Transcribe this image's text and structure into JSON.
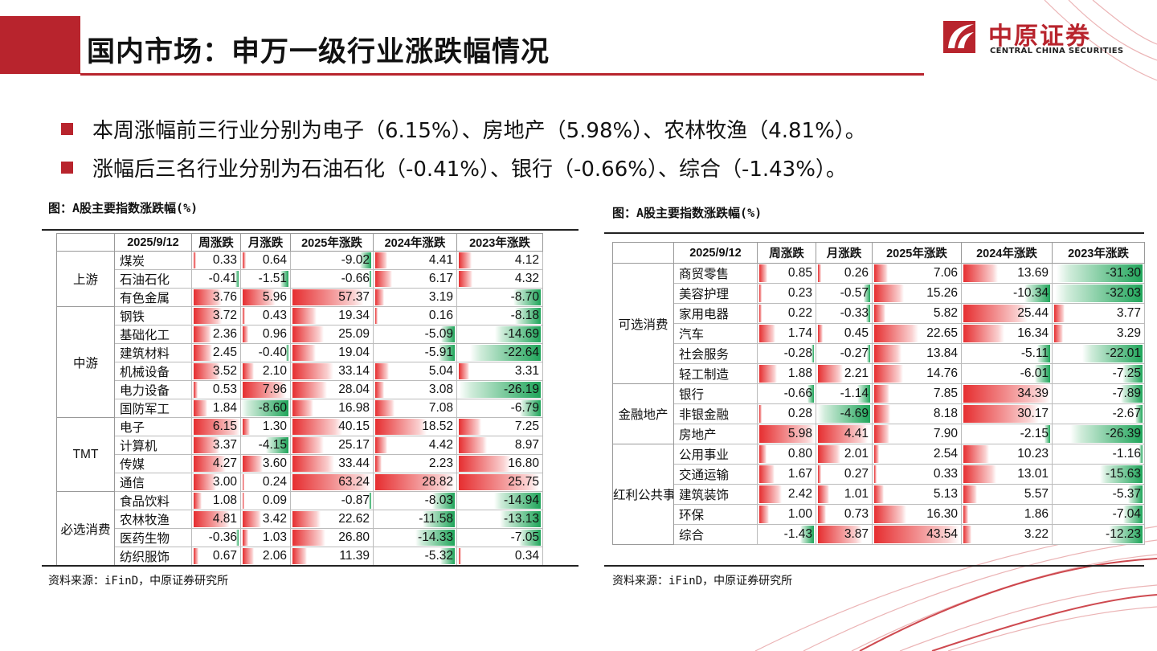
{
  "title": "国内市场：申万一级行业涨跌幅情况",
  "logo": {
    "cn": "中原证券",
    "en": "CENTRAL CHINA SECURITIES"
  },
  "bullets": [
    "本周涨幅前三行业分别为电子（6.15%）、房地产（5.98%）、农林牧渔（4.81%）。",
    "涨幅后三名行业分别为石油石化（-0.41%）、银行（-0.66%）、综合（-1.43%）。"
  ],
  "colors": {
    "brand": "#b8242d",
    "up": "#e62e30",
    "down": "#1fa55a"
  },
  "left_panel": {
    "caption": "图：A股主要指数涨跌幅(%)",
    "source": "资料来源：iFinD，中原证券研究所",
    "headers": [
      "2025/9/12",
      "周涨跌",
      "月涨跌",
      "2025年涨跌",
      "2024年涨跌",
      "2023年涨跌"
    ],
    "max_abs": [
      6.15,
      8.6,
      63.24,
      28.82,
      26.19
    ],
    "groups": [
      {
        "name": "上游",
        "rows": [
          {
            "name": "煤炭",
            "vals": [
              "0.33",
              "0.64",
              "-9.02",
              "4.41",
              "4.12"
            ]
          },
          {
            "name": "石油石化",
            "vals": [
              "-0.41",
              "-1.51",
              "-0.66",
              "6.17",
              "4.32"
            ]
          },
          {
            "name": "有色金属",
            "vals": [
              "3.76",
              "5.96",
              "57.37",
              "3.19",
              "-8.70"
            ]
          }
        ]
      },
      {
        "name": "中游",
        "rows": [
          {
            "name": "钢铁",
            "vals": [
              "3.72",
              "0.43",
              "19.34",
              "0.16",
              "-8.18"
            ]
          },
          {
            "name": "基础化工",
            "vals": [
              "2.36",
              "0.96",
              "25.09",
              "-5.09",
              "-14.69"
            ]
          },
          {
            "name": "建筑材料",
            "vals": [
              "2.45",
              "-0.40",
              "19.04",
              "-5.91",
              "-22.64"
            ]
          },
          {
            "name": "机械设备",
            "vals": [
              "3.52",
              "2.10",
              "33.14",
              "5.04",
              "3.31"
            ]
          },
          {
            "name": "电力设备",
            "vals": [
              "0.53",
              "7.96",
              "28.04",
              "3.08",
              "-26.19"
            ]
          },
          {
            "name": "国防军工",
            "vals": [
              "1.84",
              "-8.60",
              "16.98",
              "7.08",
              "-6.79"
            ]
          }
        ]
      },
      {
        "name": "TMT",
        "rows": [
          {
            "name": "电子",
            "vals": [
              "6.15",
              "1.30",
              "40.15",
              "18.52",
              "7.25"
            ]
          },
          {
            "name": "计算机",
            "vals": [
              "3.37",
              "-4.15",
              "25.17",
              "4.42",
              "8.97"
            ]
          },
          {
            "name": "传媒",
            "vals": [
              "4.27",
              "3.60",
              "33.44",
              "2.23",
              "16.80"
            ]
          },
          {
            "name": "通信",
            "vals": [
              "3.00",
              "0.24",
              "63.24",
              "28.82",
              "25.75"
            ]
          }
        ]
      },
      {
        "name": "必选消费",
        "rows": [
          {
            "name": "食品饮料",
            "vals": [
              "1.08",
              "0.09",
              "-0.87",
              "-8.03",
              "-14.94"
            ]
          },
          {
            "name": "农林牧渔",
            "vals": [
              "4.81",
              "3.42",
              "22.62",
              "-11.58",
              "-13.13"
            ]
          },
          {
            "name": "医药生物",
            "vals": [
              "-0.36",
              "1.03",
              "26.80",
              "-14.33",
              "-7.05"
            ]
          },
          {
            "name": "纺织服饰",
            "vals": [
              "0.67",
              "2.06",
              "11.39",
              "-5.32",
              "0.34"
            ]
          }
        ]
      }
    ]
  },
  "right_panel": {
    "caption": "图：A股主要指数涨跌幅(%)",
    "source": "资料来源：iFinD，中原证券研究所",
    "headers": [
      "2025/9/12",
      "周涨跌",
      "月涨跌",
      "2025年涨跌",
      "2024年涨跌",
      "2023年涨跌"
    ],
    "max_abs": [
      5.98,
      4.69,
      43.54,
      34.39,
      32.03
    ],
    "groups": [
      {
        "name": "可选消费",
        "rows": [
          {
            "name": "商贸零售",
            "vals": [
              "0.85",
              "0.26",
              "7.06",
              "13.69",
              "-31.30"
            ]
          },
          {
            "name": "美容护理",
            "vals": [
              "0.23",
              "-0.57",
              "15.26",
              "-10.34",
              "-32.03"
            ]
          },
          {
            "name": "家用电器",
            "vals": [
              "0.22",
              "-0.33",
              "5.82",
              "25.44",
              "3.77"
            ]
          },
          {
            "name": "汽车",
            "vals": [
              "1.74",
              "0.45",
              "22.65",
              "16.34",
              "3.29"
            ]
          },
          {
            "name": "社会服务",
            "vals": [
              "-0.28",
              "-0.27",
              "13.84",
              "-5.11",
              "-22.01"
            ]
          },
          {
            "name": "轻工制造",
            "vals": [
              "1.88",
              "2.21",
              "14.76",
              "-6.01",
              "-7.25"
            ]
          }
        ]
      },
      {
        "name": "金融地产",
        "rows": [
          {
            "name": "银行",
            "vals": [
              "-0.66",
              "-1.14",
              "7.85",
              "34.39",
              "-7.89"
            ]
          },
          {
            "name": "非银金融",
            "vals": [
              "0.28",
              "-4.69",
              "8.18",
              "30.17",
              "-2.67"
            ]
          },
          {
            "name": "房地产",
            "vals": [
              "5.98",
              "4.41",
              "7.90",
              "-2.15",
              "-26.39"
            ]
          }
        ]
      },
      {
        "name": "红利公共事业",
        "rows": [
          {
            "name": "公用事业",
            "vals": [
              "0.80",
              "2.01",
              "2.54",
              "10.23",
              "-1.16"
            ]
          },
          {
            "name": "交通运输",
            "vals": [
              "1.67",
              "0.27",
              "0.33",
              "13.01",
              "-15.63"
            ]
          },
          {
            "name": "建筑装饰",
            "vals": [
              "2.42",
              "1.01",
              "5.13",
              "5.57",
              "-5.37"
            ]
          },
          {
            "name": "环保",
            "vals": [
              "1.00",
              "0.73",
              "16.30",
              "1.86",
              "-7.04"
            ]
          },
          {
            "name": "综合",
            "vals": [
              "-1.43",
              "3.87",
              "43.54",
              "3.22",
              "-12.23"
            ]
          }
        ]
      }
    ]
  }
}
